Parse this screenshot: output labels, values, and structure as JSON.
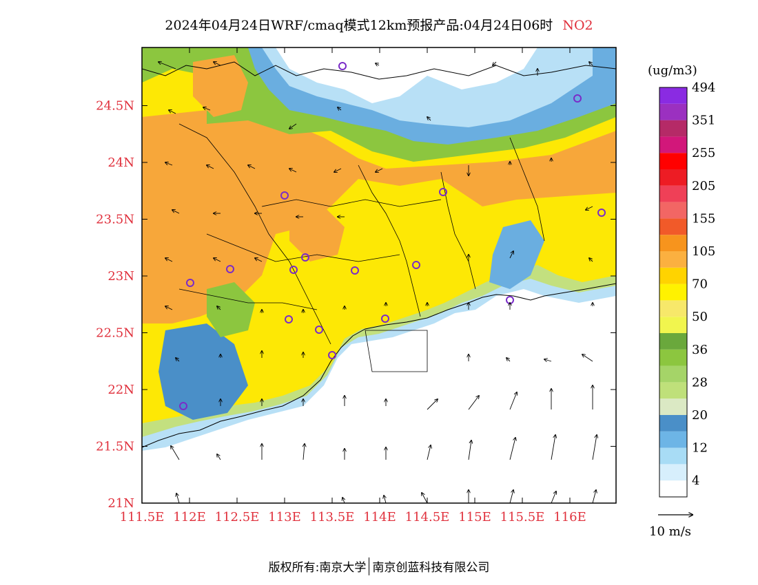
{
  "title": {
    "main": "2024年04月24日WRF/cmaq模式12km预报产品:04月24日06时",
    "pollutant": "NO2"
  },
  "colorbar": {
    "unit": "(ug/m3)",
    "colors": [
      "#ffffff",
      "#d7effc",
      "#a8dcf5",
      "#6db5e6",
      "#4a8fc8",
      "#dbe9c4",
      "#bfe07a",
      "#a5d468",
      "#8cc63f",
      "#6aa83c",
      "#f1f54e",
      "#f7e86a",
      "#fff200",
      "#ffd300",
      "#fbb040",
      "#f7941d",
      "#f15a29",
      "#f26664",
      "#ef4057",
      "#ed1c24",
      "#ff0000",
      "#d2177a",
      "#b52a67",
      "#9b30c0",
      "#8a2be2"
    ],
    "labels": [
      "4",
      "12",
      "20",
      "28",
      "36",
      "50",
      "70",
      "105",
      "155",
      "205",
      "255",
      "351",
      "494"
    ]
  },
  "map": {
    "lon_ticks": [
      "111.5E",
      "112E",
      "112.5E",
      "113E",
      "113.5E",
      "114E",
      "114.5E",
      "115E",
      "115.5E",
      "116E"
    ],
    "lat_ticks": [
      "21N",
      "21.5N",
      "22N",
      "22.5N",
      "23N",
      "23.5N",
      "24N",
      "24.5N"
    ],
    "region_colors": {
      "sea": "#ffffff",
      "orange": "#f7a73a",
      "yellow": "#fde805",
      "lightyellow": "#f5ee5e",
      "green": "#8cc63f",
      "lightgreen": "#c3e07f",
      "blue": "#6aaee0",
      "lightblue": "#b8e0f6",
      "darkblue": "#4a8fc8"
    }
  },
  "wind_legend": {
    "label": "10 m/s"
  },
  "footer": {
    "left": "版权所有:南京大学",
    "right": "南京创蓝科技有限公司"
  }
}
